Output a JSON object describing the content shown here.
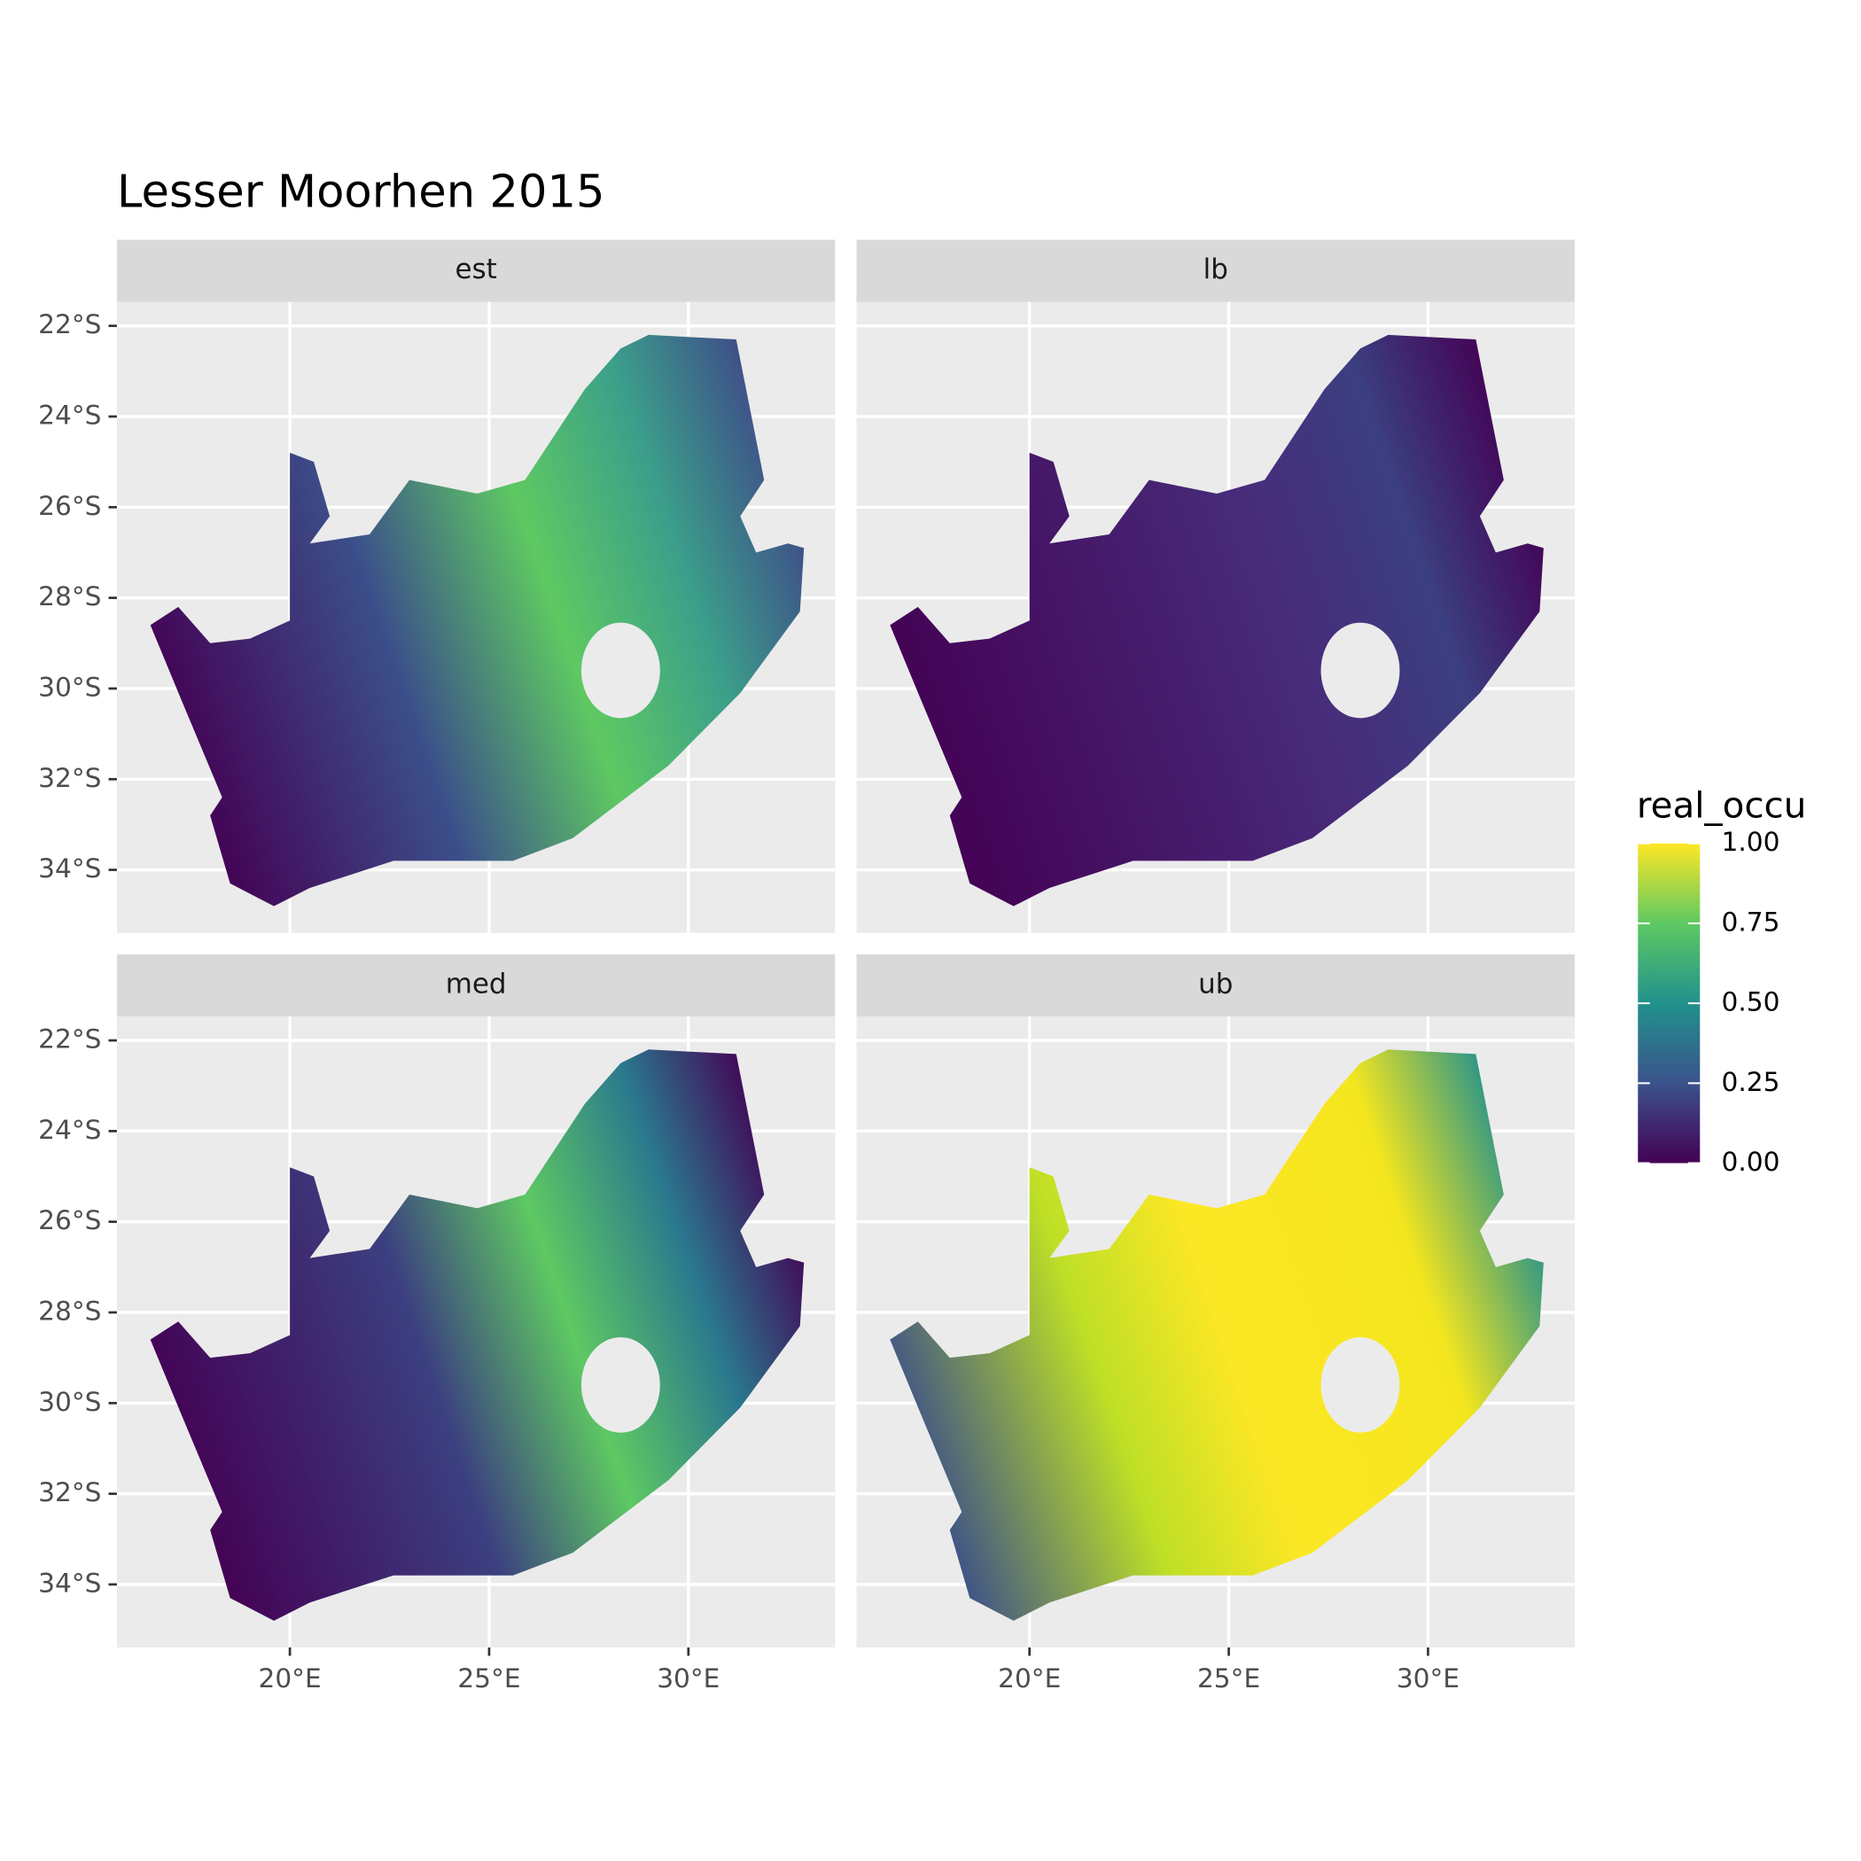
{
  "title": "Lesser Moorhen 2015",
  "facets": [
    {
      "label": "est"
    },
    {
      "label": "lb"
    },
    {
      "label": "med"
    },
    {
      "label": "ub"
    }
  ],
  "x_axis": {
    "lim": [
      15.66,
      33.68
    ],
    "ticks": [
      {
        "value": 20,
        "label": "20°E"
      },
      {
        "value": 25,
        "label": "25°E"
      },
      {
        "value": 30,
        "label": "30°E"
      }
    ]
  },
  "y_axis": {
    "lim": [
      -35.39,
      -21.47
    ],
    "ticks": [
      {
        "value": -22,
        "label": "22°S"
      },
      {
        "value": -24,
        "label": "24°S"
      },
      {
        "value": -26,
        "label": "26°S"
      },
      {
        "value": -28,
        "label": "28°S"
      },
      {
        "value": -30,
        "label": "30°S"
      },
      {
        "value": -32,
        "label": "32°S"
      },
      {
        "value": -34,
        "label": "34°S"
      }
    ]
  },
  "legend": {
    "title": "real_occu",
    "lim": [
      0,
      1
    ],
    "ticks": [
      {
        "value": 0,
        "label": "0.00"
      },
      {
        "value": 0.25,
        "label": "0.25"
      },
      {
        "value": 0.5,
        "label": "0.50"
      },
      {
        "value": 0.75,
        "label": "0.75"
      },
      {
        "value": 1,
        "label": "1.00"
      }
    ]
  }
}
